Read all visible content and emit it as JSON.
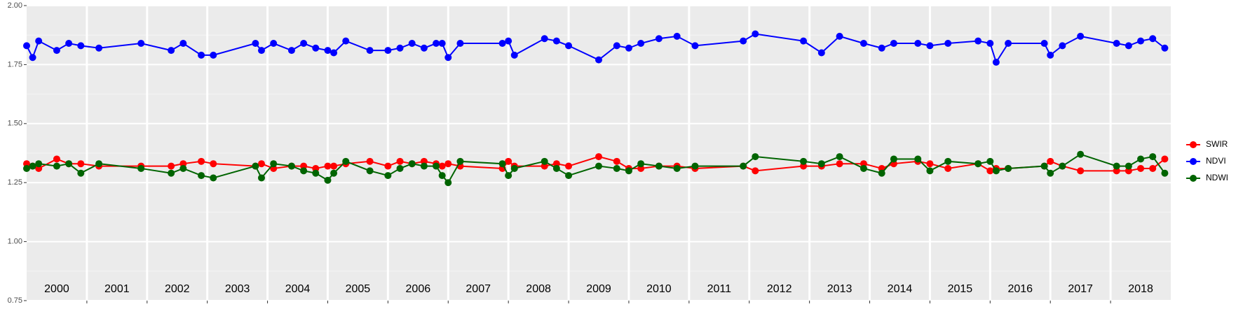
{
  "chart_data": {
    "type": "line",
    "x": [
      2000.0,
      2000.1,
      2000.2,
      2000.5,
      2000.7,
      2000.9,
      2001.2,
      2001.9,
      2002.4,
      2002.6,
      2002.9,
      2003.1,
      2003.8,
      2003.9,
      2004.1,
      2004.4,
      2004.6,
      2004.8,
      2005.0,
      2005.1,
      2005.3,
      2005.7,
      2006.0,
      2006.2,
      2006.4,
      2006.6,
      2006.8,
      2006.9,
      2007.0,
      2007.2,
      2007.9,
      2008.0,
      2008.1,
      2008.6,
      2008.8,
      2009.0,
      2009.5,
      2009.8,
      2010.0,
      2010.2,
      2010.5,
      2010.8,
      2011.1,
      2011.9,
      2012.1,
      2012.9,
      2013.2,
      2013.5,
      2013.9,
      2014.2,
      2014.4,
      2014.8,
      2015.0,
      2015.3,
      2015.8,
      2016.0,
      2016.1,
      2016.3,
      2016.9,
      2017.0,
      2017.2,
      2017.5,
      2018.1,
      2018.3,
      2018.5,
      2018.7,
      2018.9
    ],
    "series": [
      {
        "name": "SWIR",
        "color": "#ff0000",
        "values": [
          1.33,
          1.32,
          1.31,
          1.35,
          1.33,
          1.33,
          1.32,
          1.32,
          1.32,
          1.33,
          1.34,
          1.33,
          1.32,
          1.33,
          1.31,
          1.32,
          1.32,
          1.31,
          1.32,
          1.32,
          1.33,
          1.34,
          1.32,
          1.34,
          1.33,
          1.34,
          1.33,
          1.32,
          1.33,
          1.32,
          1.31,
          1.34,
          1.32,
          1.32,
          1.33,
          1.32,
          1.36,
          1.34,
          1.31,
          1.31,
          1.32,
          1.32,
          1.31,
          1.32,
          1.3,
          1.32,
          1.32,
          1.33,
          1.33,
          1.31,
          1.33,
          1.34,
          1.33,
          1.31,
          1.33,
          1.3,
          1.31,
          1.31,
          1.32,
          1.34,
          1.32,
          1.3,
          1.3,
          1.3,
          1.31,
          1.31,
          1.35
        ]
      },
      {
        "name": "NDVI",
        "color": "#0000ff",
        "values": [
          1.83,
          1.78,
          1.85,
          1.81,
          1.84,
          1.83,
          1.82,
          1.84,
          1.81,
          1.84,
          1.79,
          1.79,
          1.84,
          1.81,
          1.84,
          1.81,
          1.84,
          1.82,
          1.81,
          1.8,
          1.85,
          1.81,
          1.81,
          1.82,
          1.84,
          1.82,
          1.84,
          1.84,
          1.78,
          1.84,
          1.84,
          1.85,
          1.79,
          1.86,
          1.85,
          1.83,
          1.77,
          1.83,
          1.82,
          1.84,
          1.86,
          1.87,
          1.83,
          1.85,
          1.88,
          1.85,
          1.8,
          1.87,
          1.84,
          1.82,
          1.84,
          1.84,
          1.83,
          1.84,
          1.85,
          1.84,
          1.76,
          1.84,
          1.84,
          1.79,
          1.83,
          1.87,
          1.84,
          1.83,
          1.85,
          1.86,
          1.82
        ]
      },
      {
        "name": "NDWI",
        "color": "#006400",
        "values": [
          1.31,
          1.32,
          1.33,
          1.32,
          1.33,
          1.29,
          1.33,
          1.31,
          1.29,
          1.31,
          1.28,
          1.27,
          1.32,
          1.27,
          1.33,
          1.32,
          1.3,
          1.29,
          1.26,
          1.29,
          1.34,
          1.3,
          1.28,
          1.31,
          1.33,
          1.32,
          1.32,
          1.28,
          1.25,
          1.34,
          1.33,
          1.28,
          1.31,
          1.34,
          1.31,
          1.28,
          1.32,
          1.31,
          1.3,
          1.33,
          1.32,
          1.31,
          1.32,
          1.32,
          1.36,
          1.34,
          1.33,
          1.36,
          1.31,
          1.29,
          1.35,
          1.35,
          1.3,
          1.34,
          1.33,
          1.34,
          1.3,
          1.31,
          1.32,
          1.29,
          1.32,
          1.37,
          1.32,
          1.32,
          1.35,
          1.36,
          1.29
        ]
      }
    ],
    "xlim": [
      2000,
      2019
    ],
    "xticks": [
      2001,
      2002,
      2003,
      2004,
      2005,
      2006,
      2007,
      2008,
      2009,
      2010,
      2011,
      2012,
      2013,
      2014,
      2015,
      2016,
      2017,
      2018
    ],
    "year_labels": [
      {
        "value": 2000.5,
        "label": "2000"
      },
      {
        "value": 2001.5,
        "label": "2001"
      },
      {
        "value": 2002.5,
        "label": "2002"
      },
      {
        "value": 2003.5,
        "label": "2003"
      },
      {
        "value": 2004.5,
        "label": "2004"
      },
      {
        "value": 2005.5,
        "label": "2005"
      },
      {
        "value": 2006.5,
        "label": "2006"
      },
      {
        "value": 2007.5,
        "label": "2007"
      },
      {
        "value": 2008.5,
        "label": "2008"
      },
      {
        "value": 2009.5,
        "label": "2009"
      },
      {
        "value": 2010.5,
        "label": "2010"
      },
      {
        "value": 2011.5,
        "label": "2011"
      },
      {
        "value": 2012.5,
        "label": "2012"
      },
      {
        "value": 2013.5,
        "label": "2013"
      },
      {
        "value": 2014.5,
        "label": "2014"
      },
      {
        "value": 2015.5,
        "label": "2015"
      },
      {
        "value": 2016.5,
        "label": "2016"
      },
      {
        "value": 2017.5,
        "label": "2017"
      },
      {
        "value": 2018.5,
        "label": "2018"
      }
    ],
    "ylim": [
      0.75,
      2.0
    ],
    "yticks": [
      {
        "value": 0.75,
        "label": "0.75"
      },
      {
        "value": 1.0,
        "label": "1.00"
      },
      {
        "value": 1.25,
        "label": "1.25"
      },
      {
        "value": 1.5,
        "label": "1.50"
      },
      {
        "value": 1.75,
        "label": "1.75"
      },
      {
        "value": 2.0,
        "label": "2.00"
      }
    ],
    "grid": true,
    "legend": "right"
  }
}
